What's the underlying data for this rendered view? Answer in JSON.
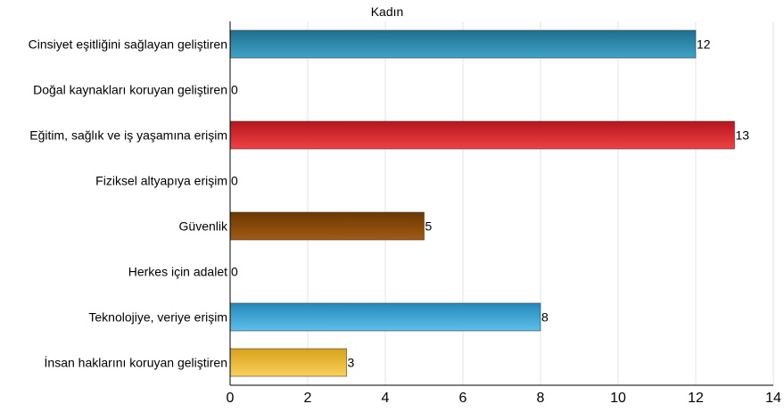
{
  "chart_data": {
    "type": "bar",
    "orientation": "horizontal",
    "title": "Kadın",
    "categories": [
      "Cinsiyet eşitliğini sağlayan geliştiren",
      "Doğal kaynakları koruyan geliştiren",
      "Eğitim, sağlık ve iş yaşamına erişim",
      "Fiziksel altyapıya erişim",
      "Güvenlik",
      "Herkes için adalet",
      "Teknolojiye, veriye erişim",
      "İnsan haklarını koruyan geliştiren"
    ],
    "values": [
      12,
      0,
      13,
      0,
      5,
      0,
      8,
      3
    ],
    "data_labels": [
      "12",
      "0",
      "13",
      "0",
      "5",
      "0",
      "8",
      "3"
    ],
    "bar_colors": [
      [
        "#1e6f8e",
        "#3fa3c8"
      ],
      [
        "#1e6f8e",
        "#3fa3c8"
      ],
      [
        "#b5161c",
        "#ef4145"
      ],
      [
        "#b5161c",
        "#ef4145"
      ],
      [
        "#6b3800",
        "#a15a14"
      ],
      [
        "#6b3800",
        "#a15a14"
      ],
      [
        "#2588ba",
        "#5cc0ea"
      ],
      [
        "#d9a21a",
        "#f9d05c"
      ]
    ],
    "xlim": [
      0,
      14
    ],
    "xticks": [
      "0",
      "2",
      "4",
      "6",
      "8",
      "10",
      "12",
      "14"
    ],
    "grid": true,
    "legend": "none"
  }
}
